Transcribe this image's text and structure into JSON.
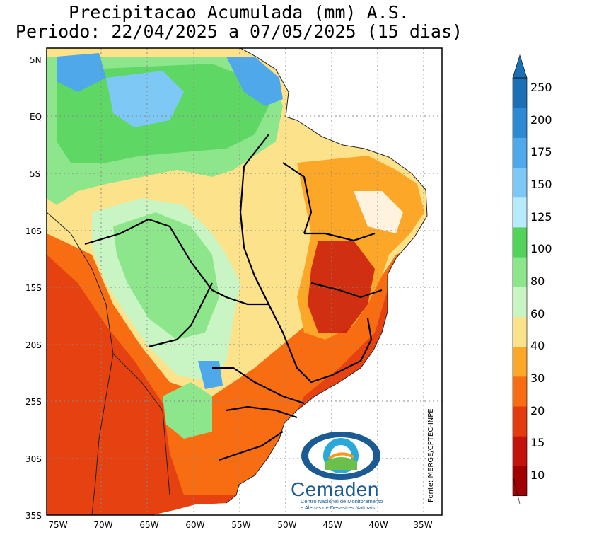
{
  "title_line1": "Precipitacao Acumulada (mm) A.S.",
  "title_line2": "Periodo: 22/04/2025 a 07/05/2025 (15 dias)",
  "source": "Fonte: MERGE/CPTEC-INPE",
  "logo": {
    "name": "Cemaden",
    "subtitle_line1": "Centro Nacional de Monitoramento",
    "subtitle_line2": "e Alertas de Desastres Naturais"
  },
  "lat_labels": [
    "5N",
    "EQ",
    "5S",
    "10S",
    "15S",
    "20S",
    "25S",
    "30S",
    "35S"
  ],
  "lon_labels": [
    "75W",
    "70W",
    "65W",
    "60W",
    "55W",
    "50W",
    "45W",
    "40W",
    "35W"
  ],
  "colorbar": {
    "levels": [
      "250",
      "200",
      "175",
      "150",
      "125",
      "100",
      "80",
      "60",
      "40",
      "30",
      "20",
      "15",
      "10"
    ],
    "colors": [
      "#1a6fb5",
      "#2b8ad3",
      "#4fa8ea",
      "#7ec8f5",
      "#b7ebfb",
      "#52d35a",
      "#8ee68c",
      "#c9f5c4",
      "#fde28c",
      "#fda728",
      "#f86c12",
      "#e33a10",
      "#c4120c",
      "#a10000"
    ]
  }
}
